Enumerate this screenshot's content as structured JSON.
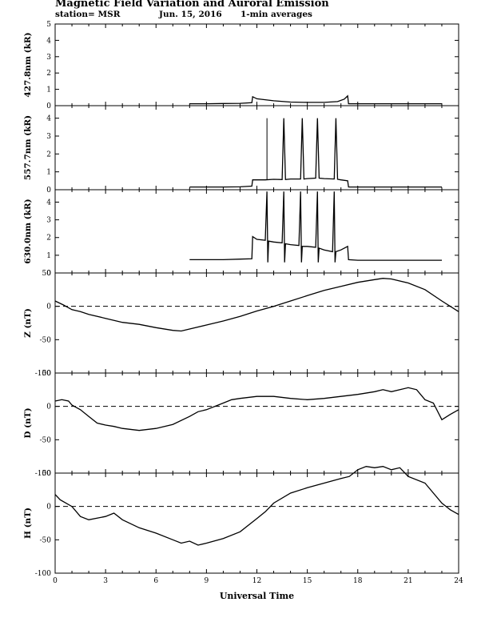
{
  "header": {
    "title": "Magnetic Field Variation and Auroral Emission",
    "station": "station= MSR",
    "date": "Jun. 15, 2016",
    "averaging": "1-min averages"
  },
  "chart_data": [
    {
      "type": "line",
      "ylabel": "427.8nm (kR)",
      "ylim": [
        0,
        5
      ],
      "yticks": [
        0,
        1,
        2,
        3,
        4,
        5
      ],
      "xlim": [
        0,
        24
      ],
      "grid": false,
      "series": [
        {
          "x": [
            8.0,
            9.0,
            10.0,
            11.0,
            11.7,
            11.75,
            12.0,
            13.0,
            14.0,
            15.0,
            16.0,
            16.8,
            17.2,
            17.4,
            17.45,
            18.0,
            19.0,
            20.0,
            21.0,
            22.0,
            23.0
          ],
          "y": [
            0.12,
            0.12,
            0.13,
            0.14,
            0.18,
            0.55,
            0.42,
            0.3,
            0.22,
            0.2,
            0.2,
            0.25,
            0.4,
            0.6,
            0.12,
            0.12,
            0.12,
            0.12,
            0.12,
            0.12,
            0.12
          ]
        }
      ]
    },
    {
      "type": "line",
      "ylabel": "557.7nm (kR)",
      "ylim": [
        0,
        4.7
      ],
      "yticks": [
        0,
        1,
        2,
        3,
        4
      ],
      "xlim": [
        0,
        24
      ],
      "grid": false,
      "series": [
        {
          "x": [
            8.0,
            9.0,
            10.0,
            11.0,
            11.7,
            11.75,
            12.5,
            13.0,
            13.5,
            13.6,
            13.7,
            14.0,
            14.6,
            14.7,
            14.8,
            15.0,
            15.5,
            15.6,
            15.7,
            16.0,
            16.6,
            16.7,
            16.8,
            17.0,
            17.4,
            17.45,
            18.0,
            19.0,
            20.0,
            21.0,
            22.0,
            23.0
          ],
          "y": [
            0.15,
            0.15,
            0.15,
            0.16,
            0.2,
            0.55,
            0.55,
            0.58,
            0.57,
            4.0,
            0.57,
            0.6,
            0.6,
            4.0,
            0.6,
            0.62,
            0.65,
            4.0,
            0.65,
            0.62,
            0.6,
            4.0,
            0.58,
            0.55,
            0.5,
            0.15,
            0.15,
            0.15,
            0.15,
            0.15,
            0.15,
            0.15
          ]
        }
      ],
      "spikes_x": [
        12.6
      ]
    },
    {
      "type": "line",
      "ylabel": "630.0nm (kR)",
      "ylim": [
        0,
        4.7
      ],
      "yticks": [
        0,
        1,
        2,
        3,
        4
      ],
      "xlim": [
        0,
        24
      ],
      "grid": false,
      "series": [
        {
          "x": [
            8.0,
            9.0,
            10.0,
            11.0,
            11.7,
            11.75,
            12.0,
            12.5,
            12.6,
            12.65,
            12.7,
            13.0,
            13.5,
            13.6,
            13.65,
            13.7,
            14.0,
            14.5,
            14.6,
            14.65,
            14.7,
            15.0,
            15.5,
            15.6,
            15.65,
            15.7,
            16.0,
            16.5,
            16.6,
            16.65,
            16.7,
            17.0,
            17.4,
            17.45,
            18.0,
            19.0,
            20.0,
            21.0,
            22.0,
            23.0
          ],
          "y": [
            0.75,
            0.75,
            0.75,
            0.78,
            0.8,
            2.05,
            1.9,
            1.85,
            4.6,
            0.6,
            1.8,
            1.75,
            1.7,
            4.6,
            0.6,
            1.65,
            1.6,
            1.55,
            4.6,
            0.6,
            1.5,
            1.5,
            1.45,
            4.6,
            0.6,
            1.4,
            1.3,
            1.2,
            4.6,
            0.6,
            1.2,
            1.3,
            1.5,
            0.75,
            0.72,
            0.72,
            0.72,
            0.72,
            0.72,
            0.72
          ]
        }
      ]
    },
    {
      "type": "line",
      "ylabel": "Z (nT)",
      "ylim": [
        -100,
        50
      ],
      "yticks": [
        -100,
        -50,
        0,
        50
      ],
      "xlim": [
        0,
        24
      ],
      "zero_line": "dashed",
      "series": [
        {
          "x": [
            0,
            0.5,
            1,
            1.5,
            2,
            3,
            4,
            5,
            6,
            7,
            7.5,
            8,
            9,
            10,
            11,
            12,
            13,
            14,
            15,
            16,
            17,
            18,
            19,
            19.5,
            20,
            21,
            22,
            23,
            24
          ],
          "y": [
            8,
            2,
            -5,
            -8,
            -12,
            -18,
            -24,
            -27,
            -32,
            -36,
            -37,
            -34,
            -28,
            -22,
            -15,
            -7,
            0,
            8,
            16,
            24,
            30,
            36,
            40,
            42,
            41,
            35,
            25,
            8,
            -8
          ]
        }
      ]
    },
    {
      "type": "line",
      "ylabel": "D (nT)",
      "ylim": [
        -100,
        50
      ],
      "yticks": [
        -100,
        -50,
        0,
        50
      ],
      "xlim": [
        0,
        24
      ],
      "zero_line": "dashed",
      "series": [
        {
          "x": [
            0,
            0.4,
            0.8,
            1,
            1.5,
            2,
            2.5,
            3,
            3.5,
            4,
            5,
            6,
            7,
            8,
            8.5,
            9,
            10,
            10.5,
            11,
            12,
            13,
            14,
            15,
            16,
            17,
            18,
            19,
            19.5,
            20,
            21,
            21.5,
            22,
            22.5,
            23,
            23.5,
            24
          ],
          "y": [
            8,
            10,
            8,
            2,
            -5,
            -15,
            -25,
            -28,
            -30,
            -33,
            -36,
            -33,
            -27,
            -15,
            -8,
            -5,
            5,
            10,
            12,
            15,
            15,
            12,
            10,
            12,
            15,
            18,
            22,
            25,
            22,
            28,
            25,
            10,
            5,
            -20,
            -12,
            -5
          ]
        }
      ]
    },
    {
      "type": "line",
      "ylabel": "H (nT)",
      "ylim": [
        -100,
        50
      ],
      "yticks": [
        -100,
        -50,
        0,
        50
      ],
      "xlim": [
        0,
        24
      ],
      "zero_line": "dashed",
      "xticks": [
        0,
        3,
        6,
        9,
        12,
        15,
        18,
        21,
        24
      ],
      "xlabel": "Universal Time",
      "series": [
        {
          "x": [
            0,
            0.3,
            1,
            1.5,
            2,
            3,
            3.5,
            4,
            5,
            6,
            7,
            7.5,
            8,
            8.5,
            9,
            10,
            11,
            12,
            12.5,
            13,
            14,
            15,
            16,
            17,
            17.5,
            18,
            18.5,
            19,
            19.5,
            20,
            20.5,
            21,
            22,
            23,
            23.5,
            24
          ],
          "y": [
            18,
            10,
            0,
            -15,
            -20,
            -15,
            -10,
            -20,
            -32,
            -40,
            -50,
            -55,
            -52,
            -58,
            -55,
            -48,
            -38,
            -18,
            -8,
            5,
            20,
            28,
            35,
            42,
            45,
            55,
            60,
            58,
            60,
            55,
            58,
            45,
            35,
            5,
            -5,
            -12
          ]
        }
      ]
    }
  ]
}
